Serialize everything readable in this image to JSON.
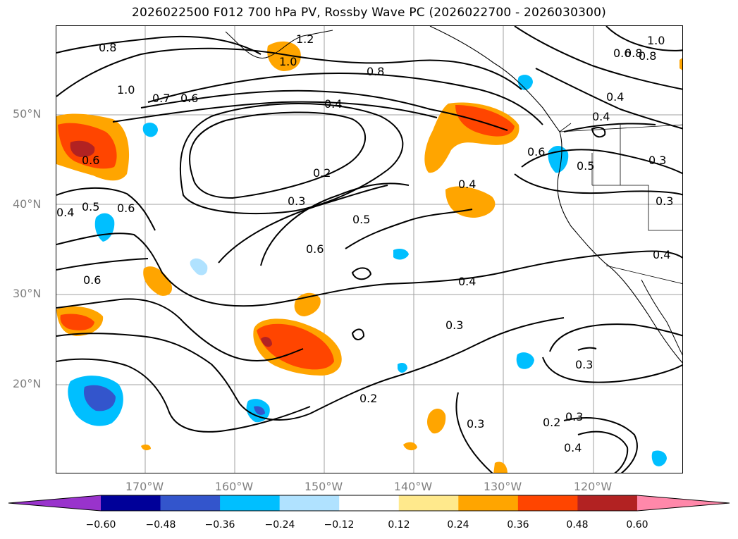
{
  "title": "2026022500 F012 700 hPa PV, Rossby Wave PC (2026022700 - 2026030300)",
  "lat_labels": [
    "50°N",
    "40°N",
    "30°N",
    "20°N"
  ],
  "lon_labels": [
    "170°W",
    "160°W",
    "150°W",
    "140°W",
    "130°W",
    "120°W"
  ],
  "contour_labels": [
    "0.8",
    "1.2",
    "1.0",
    "0.8",
    "1.0",
    "0.7",
    "0.6",
    "0.4",
    "0.6",
    "0.8",
    "0.8",
    "1.0",
    "0.6",
    "0.4",
    "0.4",
    "0.6",
    "0.5",
    "0.3",
    "0.2",
    "0.3",
    "0.5",
    "0.6",
    "0.4",
    "0.5",
    "0.6",
    "0.4",
    "0.6",
    "0.4",
    "0.3",
    "0.3",
    "0.2",
    "0.3",
    "0.2",
    "0.3",
    "0.4",
    "0.3",
    "0.4"
  ],
  "colorbar": {
    "tick_labels": [
      "−0.60",
      "−0.48",
      "−0.36",
      "−0.24",
      "−0.12",
      "0.12",
      "0.24",
      "0.36",
      "0.48",
      "0.60"
    ],
    "colors": [
      "#9933cc",
      "#000099",
      "#3355cc",
      "#00bfff",
      "#b0e2ff",
      "#ffffff",
      "#ffe98c",
      "#ffa500",
      "#ff4500",
      "#b22222",
      "#ff88aa"
    ]
  }
}
